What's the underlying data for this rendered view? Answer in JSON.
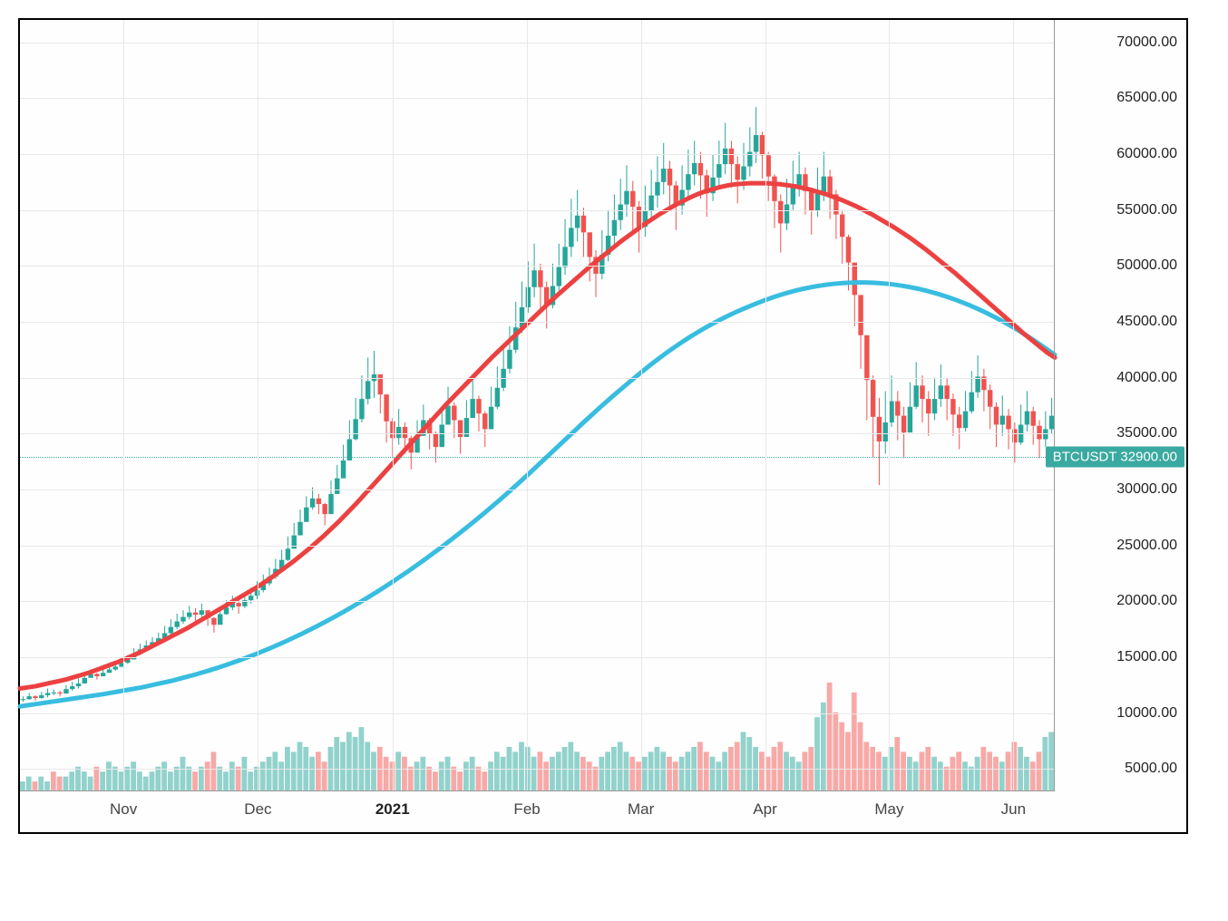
{
  "chart": {
    "type": "candlestick",
    "symbol": "BTCUSDT",
    "current_price": "32900.00",
    "current_price_value": 32900,
    "background_color": "#fefefe",
    "border_color": "#000000",
    "grid_color": "#e8e8e8",
    "up_color": "#26a69a",
    "down_color": "#ef5350",
    "ma_red_color": "#ec4141",
    "ma_blue_color": "#38bde0",
    "volume_up_color": "rgba(38,166,154,0.5)",
    "volume_down_color": "rgba(239,83,80,0.5)",
    "label_bg_color": "#3aa9a1",
    "y_axis": {
      "min": 3000,
      "max": 72000,
      "ticks": [
        "70000.00",
        "65000.00",
        "60000.00",
        "55000.00",
        "50000.00",
        "45000.00",
        "40000.00",
        "35000.00",
        "30000.00",
        "25000.00",
        "20000.00",
        "15000.00",
        "10000.00",
        "5000.00"
      ],
      "tick_values": [
        70000,
        65000,
        60000,
        55000,
        50000,
        45000,
        40000,
        35000,
        30000,
        25000,
        20000,
        15000,
        10000,
        5000
      ],
      "fontsize": 16
    },
    "x_axis": {
      "labels": [
        "Nov",
        "Dec",
        "2021",
        "Feb",
        "Mar",
        "Apr",
        "May",
        "Jun"
      ],
      "positions_pct": [
        10,
        23,
        36,
        49,
        60,
        72,
        84,
        96
      ],
      "bold_idx": 2,
      "fontsize": 17
    },
    "price_series": [
      [
        11000,
        11500
      ],
      [
        11200,
        11800
      ],
      [
        11100,
        11600
      ],
      [
        11300,
        11900
      ],
      [
        11400,
        12200
      ],
      [
        11600,
        12100
      ],
      [
        11500,
        12000
      ],
      [
        11800,
        12500
      ],
      [
        12000,
        12800
      ],
      [
        12200,
        13100
      ],
      [
        12800,
        13500
      ],
      [
        13200,
        13800
      ],
      [
        13000,
        13600
      ],
      [
        13300,
        13900
      ],
      [
        13600,
        14200
      ],
      [
        13800,
        14500
      ],
      [
        14100,
        14900
      ],
      [
        14400,
        15200
      ],
      [
        14800,
        15800
      ],
      [
        15200,
        16200
      ],
      [
        15600,
        16500
      ],
      [
        15900,
        16800
      ],
      [
        16200,
        17200
      ],
      [
        16500,
        17800
      ],
      [
        17000,
        18400
      ],
      [
        17500,
        18900
      ],
      [
        18000,
        19200
      ],
      [
        18400,
        19600
      ],
      [
        18200,
        19400
      ],
      [
        18600,
        19800
      ],
      [
        17800,
        19200
      ],
      [
        17200,
        18600
      ],
      [
        18200,
        19500
      ],
      [
        18800,
        20100
      ],
      [
        19200,
        20500
      ],
      [
        18900,
        20200
      ],
      [
        19400,
        20800
      ],
      [
        19800,
        21200
      ],
      [
        20200,
        21800
      ],
      [
        20800,
        22400
      ],
      [
        21400,
        23000
      ],
      [
        22000,
        23800
      ],
      [
        22800,
        24600
      ],
      [
        23600,
        25800
      ],
      [
        24800,
        27000
      ],
      [
        26000,
        28200
      ],
      [
        27400,
        29400
      ],
      [
        28200,
        30200
      ],
      [
        27800,
        29600
      ],
      [
        26800,
        28800
      ],
      [
        28400,
        30800
      ],
      [
        29800,
        32200
      ],
      [
        31200,
        34000
      ],
      [
        32800,
        36200
      ],
      [
        34400,
        38200
      ],
      [
        36000,
        40200
      ],
      [
        37600,
        41800
      ],
      [
        38200,
        42400
      ],
      [
        36800,
        40200
      ],
      [
        34200,
        38000
      ],
      [
        32800,
        36400
      ],
      [
        34000,
        37200
      ],
      [
        33200,
        36000
      ],
      [
        31800,
        34800
      ],
      [
        33400,
        36200
      ],
      [
        34800,
        37600
      ],
      [
        33600,
        36400
      ],
      [
        32400,
        35200
      ],
      [
        34200,
        37400
      ],
      [
        35800,
        39200
      ],
      [
        34600,
        37800
      ],
      [
        33200,
        36200
      ],
      [
        34800,
        38000
      ],
      [
        36400,
        39800
      ],
      [
        35200,
        38400
      ],
      [
        33800,
        37000
      ],
      [
        35600,
        39200
      ],
      [
        37200,
        41000
      ],
      [
        38800,
        42800
      ],
      [
        40400,
        44600
      ],
      [
        42200,
        46800
      ],
      [
        44000,
        48600
      ],
      [
        45800,
        50400
      ],
      [
        47200,
        52000
      ],
      [
        46000,
        50200
      ],
      [
        44400,
        48600
      ],
      [
        46200,
        50200
      ],
      [
        47800,
        52000
      ],
      [
        49200,
        54200
      ],
      [
        50800,
        56000
      ],
      [
        52200,
        56800
      ],
      [
        50800,
        55200
      ],
      [
        48600,
        53000
      ],
      [
        47200,
        51400
      ],
      [
        48800,
        53200
      ],
      [
        50400,
        55000
      ],
      [
        51800,
        56400
      ],
      [
        53200,
        57800
      ],
      [
        54400,
        59000
      ],
      [
        53000,
        57600
      ],
      [
        51200,
        55800
      ],
      [
        52600,
        57200
      ],
      [
        54000,
        58600
      ],
      [
        55200,
        59800
      ],
      [
        56400,
        61000
      ],
      [
        55000,
        59400
      ],
      [
        53200,
        57600
      ],
      [
        54600,
        59000
      ],
      [
        56000,
        60400
      ],
      [
        57200,
        61200
      ],
      [
        56000,
        60200
      ],
      [
        54400,
        58600
      ],
      [
        55800,
        60000
      ],
      [
        57000,
        61200
      ],
      [
        58200,
        62800
      ],
      [
        57000,
        61200
      ],
      [
        55600,
        59800
      ],
      [
        56800,
        61000
      ],
      [
        58000,
        62400
      ],
      [
        59200,
        64200
      ],
      [
        57800,
        62000
      ],
      [
        55800,
        60200
      ],
      [
        53400,
        58200
      ],
      [
        51200,
        56400
      ],
      [
        53200,
        57800
      ],
      [
        55000,
        59400
      ],
      [
        56200,
        60200
      ],
      [
        54600,
        58800
      ],
      [
        52800,
        57000
      ],
      [
        54400,
        58800
      ],
      [
        55800,
        60200
      ],
      [
        54200,
        58600
      ],
      [
        52400,
        56800
      ],
      [
        50200,
        55000
      ],
      [
        47800,
        52800
      ],
      [
        44600,
        50200
      ],
      [
        40800,
        46800
      ],
      [
        36200,
        43400
      ],
      [
        32800,
        40200
      ],
      [
        30400,
        38200
      ],
      [
        33200,
        38800
      ],
      [
        35600,
        40200
      ],
      [
        34400,
        38800
      ],
      [
        32800,
        37400
      ],
      [
        35200,
        39600
      ],
      [
        37200,
        41400
      ],
      [
        36000,
        40200
      ],
      [
        34800,
        38800
      ],
      [
        36200,
        40000
      ],
      [
        37400,
        41200
      ],
      [
        36200,
        40000
      ],
      [
        34800,
        38600
      ],
      [
        33600,
        37400
      ],
      [
        35200,
        38800
      ],
      [
        36800,
        40600
      ],
      [
        38200,
        42000
      ],
      [
        37000,
        40800
      ],
      [
        35400,
        39400
      ],
      [
        33800,
        37800
      ],
      [
        34800,
        38400
      ],
      [
        33600,
        37200
      ],
      [
        32400,
        36000
      ],
      [
        34000,
        37600
      ],
      [
        35200,
        38800
      ],
      [
        34000,
        37400
      ],
      [
        32800,
        36200
      ],
      [
        33800,
        37000
      ],
      [
        35000,
        38200
      ]
    ],
    "ma_red": [
      12200,
      12300,
      12400,
      12550,
      12700,
      12850,
      13000,
      13200,
      13400,
      13600,
      13850,
      14100,
      14350,
      14600,
      14900,
      15200,
      15500,
      15850,
      16200,
      16550,
      16900,
      17250,
      17600,
      18000,
      18400,
      18800,
      19200,
      19600,
      20000,
      20400,
      20800,
      21200,
      21650,
      22100,
      22600,
      23100,
      23600,
      24150,
      24700,
      25300,
      25900,
      26550,
      27200,
      27900,
      28600,
      29350,
      30100,
      30850,
      31600,
      32350,
      33100,
      33850,
      34600,
      35350,
      36100,
      36850,
      37600,
      38300,
      39000,
      39700,
      40400,
      41100,
      41800,
      42450,
      43100,
      43750,
      44400,
      45050,
      45700,
      46350,
      47000,
      47600,
      48200,
      48800,
      49400,
      50000,
      50550,
      51100,
      51650,
      52200,
      52700,
      53200,
      53700,
      54150,
      54600,
      55000,
      55400,
      55750,
      56100,
      56400,
      56650,
      56850,
      57050,
      57200,
      57300,
      57350,
      57400,
      57400,
      57400,
      57350,
      57300,
      57200,
      57100,
      56950,
      56800,
      56600,
      56400,
      56150,
      55900,
      55600,
      55300,
      54950,
      54600,
      54200,
      53800,
      53400,
      52950,
      52500,
      52000,
      51500,
      50950,
      50400,
      49850,
      49300,
      48700,
      48100,
      47500,
      46900,
      46300,
      45700,
      45100,
      44500,
      43900,
      43350,
      42800,
      42250,
      41800
    ],
    "ma_blue": [
      10600,
      10700,
      10800,
      10900,
      11000,
      11100,
      11200,
      11300,
      11400,
      11500,
      11600,
      11700,
      11820,
      11940,
      12060,
      12180,
      12300,
      12450,
      12600,
      12750,
      12900,
      13080,
      13260,
      13440,
      13640,
      13840,
      14060,
      14280,
      14520,
      14760,
      15020,
      15280,
      15560,
      15840,
      16140,
      16440,
      16760,
      17080,
      17420,
      17760,
      18120,
      18480,
      18860,
      19240,
      19640,
      20040,
      20460,
      20880,
      21320,
      21760,
      22220,
      22680,
      23160,
      23640,
      24140,
      24640,
      25160,
      25680,
      26220,
      26760,
      27320,
      27880,
      28460,
      29040,
      29640,
      30240,
      30860,
      31480,
      32120,
      32760,
      33400,
      34040,
      34680,
      35320,
      35960,
      36580,
      37200,
      37800,
      38400,
      38980,
      39560,
      40120,
      40680,
      41220,
      41740,
      42240,
      42720,
      43180,
      43620,
      44040,
      44440,
      44820,
      45180,
      45520,
      45840,
      46140,
      46420,
      46700,
      46960,
      47200,
      47420,
      47620,
      47800,
      47960,
      48100,
      48220,
      48320,
      48400,
      48460,
      48500,
      48520,
      48520,
      48500,
      48460,
      48400,
      48320,
      48220,
      48100,
      47960,
      47800,
      47620,
      47420,
      47200,
      46960,
      46700,
      46420,
      46120,
      45800,
      45460,
      45100,
      44720,
      44320,
      43900,
      43460,
      43000,
      42520,
      42050
    ],
    "volume": [
      2,
      3,
      2,
      3,
      2,
      4,
      3,
      3,
      4,
      5,
      4,
      3,
      5,
      4,
      6,
      5,
      4,
      5,
      6,
      4,
      3,
      4,
      5,
      6,
      4,
      5,
      7,
      5,
      4,
      5,
      6,
      8,
      5,
      4,
      6,
      5,
      7,
      4,
      5,
      6,
      7,
      8,
      6,
      9,
      8,
      10,
      9,
      7,
      8,
      6,
      9,
      11,
      10,
      12,
      11,
      13,
      10,
      8,
      9,
      7,
      6,
      8,
      7,
      5,
      6,
      7,
      5,
      4,
      6,
      7,
      5,
      4,
      6,
      7,
      5,
      4,
      6,
      8,
      7,
      9,
      8,
      10,
      9,
      7,
      8,
      6,
      7,
      8,
      9,
      10,
      8,
      7,
      6,
      5,
      7,
      8,
      9,
      10,
      8,
      7,
      6,
      7,
      8,
      9,
      8,
      7,
      6,
      7,
      8,
      9,
      10,
      8,
      7,
      6,
      8,
      9,
      10,
      12,
      11,
      9,
      8,
      7,
      9,
      10,
      8,
      7,
      6,
      8,
      9,
      15,
      18,
      22,
      16,
      14,
      12,
      20,
      14,
      10,
      9,
      8,
      7,
      9,
      11,
      8,
      7,
      6,
      8,
      9,
      7,
      6,
      5,
      7,
      8,
      6,
      5,
      7,
      9,
      8,
      7,
      6,
      8,
      10,
      9,
      7,
      6,
      8,
      11,
      12
    ]
  }
}
